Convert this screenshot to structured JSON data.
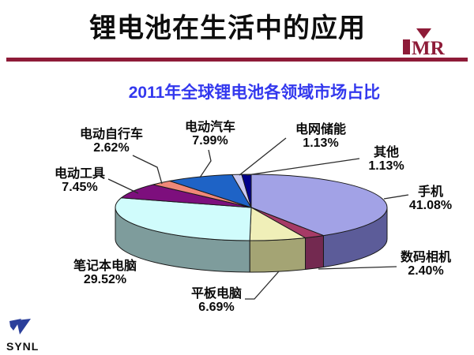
{
  "slide": {
    "title": "锂电池在生活中的应用",
    "accent_color": "#8E1B38"
  },
  "logos": {
    "imr_text": "MR",
    "synl_text": "SYNL",
    "imr_color": "#8E1B38",
    "synl_color": "#2B3F9B"
  },
  "chart_data": {
    "type": "pie",
    "style": "3d-exploded-none",
    "title": "2011年全球锂电池各领域市场占比",
    "title_color": "#3338EE",
    "start_angle_deg": 0,
    "direction": "clockwise",
    "legend_position": "none",
    "slices": [
      {
        "name": "手机",
        "value": 41.08,
        "pct_label": "41.08%",
        "top_color": "#A2A2E6",
        "side_color": "#5C5C99"
      },
      {
        "name": "数码相机",
        "value": 2.4,
        "pct_label": "2.40%",
        "top_color": "#A63A66",
        "side_color": "#732950"
      },
      {
        "name": "平板电脑",
        "value": 6.69,
        "pct_label": "6.69%",
        "top_color": "#F0EFB8",
        "side_color": "#A4A474"
      },
      {
        "name": "笔记本电脑",
        "value": 29.52,
        "pct_label": "29.52%",
        "top_color": "#D0FCFC",
        "side_color": "#7E9C9C"
      },
      {
        "name": "电动工具",
        "value": 7.45,
        "pct_label": "7.45%",
        "top_color": "#7D0F7D",
        "side_color": "#5A0B5A"
      },
      {
        "name": "电动自行车",
        "value": 2.62,
        "pct_label": "2.62%",
        "top_color": "#F08878",
        "side_color": "#B3604F"
      },
      {
        "name": "电动汽车",
        "value": 7.99,
        "pct_label": "7.99%",
        "top_color": "#1E63C6",
        "side_color": "#154A94"
      },
      {
        "name": "电网储能",
        "value": 1.13,
        "pct_label": "1.13%",
        "top_color": "#CACAF2",
        "side_color": "#9090C0"
      },
      {
        "name": "其他",
        "value": 1.13,
        "pct_label": "1.13%",
        "top_color": "#00008B",
        "side_color": "#000060"
      }
    ]
  }
}
